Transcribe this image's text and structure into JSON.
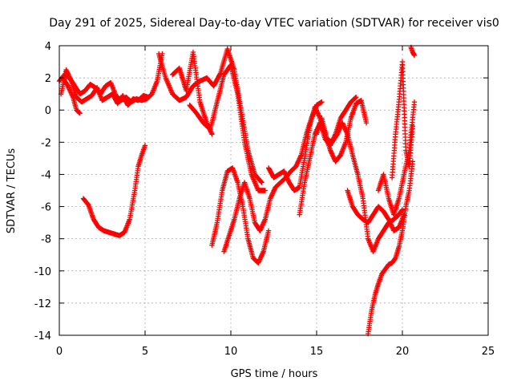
{
  "chart_data": {
    "type": "scatter",
    "title": "Day 291 of 2025, Sidereal Day-to-day VTEC variation (SDTVAR) for receiver vis0",
    "xlabel": "GPS time / hours",
    "ylabel": "SDTVAR / TECUs",
    "xlim": [
      0,
      25
    ],
    "ylim": [
      -14,
      4
    ],
    "xticks": [
      0,
      5,
      10,
      15,
      20,
      25
    ],
    "yticks": [
      -14,
      -12,
      -10,
      -8,
      -6,
      -4,
      -2,
      0,
      2,
      4
    ],
    "grid": true,
    "legend": "none",
    "marker": "plus",
    "color": "#ff0000",
    "series": [
      {
        "x": [
          0.0,
          0.3,
          0.6,
          0.9,
          1.2,
          1.5,
          1.8,
          2.1,
          2.4,
          2.7,
          3.0,
          3.3,
          3.6,
          3.9,
          4.2,
          4.5,
          4.8,
          5.1,
          5.4,
          5.7,
          6.0
        ],
        "y": [
          1.8,
          2.2,
          2.0,
          1.5,
          1.0,
          1.2,
          1.6,
          1.4,
          1.0,
          1.5,
          1.7,
          0.9,
          0.6,
          0.8,
          0.5,
          0.7,
          0.6,
          0.7,
          1.0,
          1.8,
          3.5
        ]
      },
      {
        "x": [
          0.1,
          0.4,
          0.7,
          1.0,
          1.3,
          1.6,
          1.9,
          2.2,
          2.5,
          2.8,
          3.1,
          3.4,
          3.7,
          4.0,
          4.3,
          4.6,
          4.9,
          5.2
        ],
        "y": [
          1.0,
          2.5,
          1.8,
          0.8,
          0.5,
          0.7,
          0.9,
          1.4,
          0.6,
          0.8,
          1.0,
          0.4,
          0.9,
          0.3,
          0.7,
          0.6,
          0.9,
          0.8
        ]
      },
      {
        "x": [
          0.2,
          0.5,
          0.8,
          1.0,
          1.2
        ],
        "y": [
          2.0,
          1.5,
          0.8,
          0.0,
          -0.2
        ]
      },
      {
        "x": [
          1.4,
          1.7,
          2.0,
          2.3,
          2.6,
          2.9,
          3.2,
          3.5,
          3.8,
          4.1,
          4.4,
          4.6,
          4.8,
          5.0
        ],
        "y": [
          -5.5,
          -5.9,
          -6.8,
          -7.3,
          -7.5,
          -7.6,
          -7.7,
          -7.8,
          -7.6,
          -6.8,
          -5.0,
          -3.5,
          -2.8,
          -2.2
        ]
      },
      {
        "x": [
          5.8,
          6.2,
          6.6,
          7.0,
          7.4,
          7.8,
          8.2,
          8.6,
          9.0,
          9.4,
          9.8,
          10.2,
          10.6,
          11.0,
          11.4,
          11.8
        ],
        "y": [
          3.5,
          2.0,
          1.0,
          0.6,
          0.8,
          1.5,
          1.8,
          2.0,
          1.5,
          2.3,
          3.8,
          2.5,
          0.0,
          -2.5,
          -4.0,
          -4.5
        ]
      },
      {
        "x": [
          6.6,
          7.0,
          7.4,
          7.8,
          8.2,
          8.6,
          8.9
        ],
        "y": [
          2.2,
          2.6,
          1.2,
          3.6,
          0.5,
          -0.8,
          -1.5
        ]
      },
      {
        "x": [
          7.6,
          8.0,
          8.4,
          8.8,
          9.2,
          9.6,
          10.0,
          10.4,
          10.8,
          11.2,
          11.6,
          12.0
        ],
        "y": [
          0.3,
          -0.2,
          -0.8,
          -1.2,
          0.5,
          2.2,
          2.8,
          1.0,
          -2.0,
          -4.0,
          -5.0,
          -5.0
        ]
      },
      {
        "x": [
          8.9,
          9.2,
          9.5,
          9.8,
          10.1,
          10.4,
          10.7,
          11.0,
          11.3,
          11.6,
          11.9,
          12.2
        ],
        "y": [
          -8.4,
          -7.0,
          -5.0,
          -3.8,
          -3.6,
          -4.5,
          -6.0,
          -8.0,
          -9.2,
          -9.5,
          -8.8,
          -7.5
        ]
      },
      {
        "x": [
          9.6,
          9.9,
          10.2,
          10.5,
          10.8,
          11.1,
          11.4,
          11.7,
          12.0,
          12.3,
          12.6,
          12.9,
          13.2,
          13.5,
          13.8,
          14.1,
          14.4,
          14.7,
          15.0,
          15.3
        ],
        "y": [
          -8.8,
          -7.8,
          -6.8,
          -5.5,
          -4.5,
          -5.5,
          -7.0,
          -7.5,
          -6.8,
          -5.5,
          -4.8,
          -4.5,
          -4.2,
          -3.8,
          -3.5,
          -2.8,
          -1.5,
          -0.5,
          0.3,
          0.5
        ]
      },
      {
        "x": [
          12.2,
          12.5,
          12.8,
          13.1,
          13.4,
          13.7,
          14.0,
          14.3,
          14.6,
          14.9,
          15.2,
          15.5,
          15.8,
          16.1,
          16.4,
          16.7,
          17.0,
          17.3,
          17.6,
          17.9
        ],
        "y": [
          -3.6,
          -4.2,
          -4.0,
          -3.8,
          -4.5,
          -5.0,
          -4.8,
          -3.0,
          -1.0,
          0.2,
          -0.5,
          -1.5,
          -2.5,
          -3.2,
          -2.8,
          -2.0,
          -0.5,
          0.4,
          0.6,
          -0.8
        ]
      },
      {
        "x": [
          14.0,
          14.3,
          14.6,
          14.9,
          15.2,
          15.5,
          15.8,
          16.1,
          16.4,
          16.7,
          17.0,
          17.3
        ],
        "y": [
          -6.5,
          -4.5,
          -3.0,
          -1.5,
          -0.8,
          -1.8,
          -2.2,
          -1.5,
          -0.5,
          0.0,
          0.5,
          0.8
        ]
      },
      {
        "x": [
          15.0,
          15.3,
          15.6,
          15.9,
          16.2,
          16.5,
          16.8,
          17.1,
          17.4,
          17.7,
          18.0,
          18.3,
          18.6,
          18.9,
          19.2,
          19.5,
          19.8,
          20.0
        ],
        "y": [
          -1.5,
          -0.5,
          -1.8,
          -2.0,
          -1.5,
          -0.8,
          -1.5,
          -2.8,
          -4.0,
          -5.5,
          -8.0,
          -8.8,
          -8.0,
          -7.5,
          -7.0,
          -6.8,
          -6.5,
          -6.2
        ]
      },
      {
        "x": [
          16.8,
          17.1,
          17.4,
          17.7,
          18.0,
          18.3,
          18.6,
          18.9,
          19.2,
          19.5,
          19.8,
          20.1
        ],
        "y": [
          -5.0,
          -6.0,
          -6.5,
          -6.8,
          -7.0,
          -6.5,
          -6.0,
          -6.3,
          -6.8,
          -7.5,
          -7.3,
          -6.5
        ]
      },
      {
        "x": [
          18.0,
          18.2,
          18.4,
          18.6,
          18.8,
          19.0,
          19.2,
          19.4,
          19.6,
          19.8,
          20.0,
          20.2,
          20.4,
          20.6
        ],
        "y": [
          -13.9,
          -12.5,
          -11.5,
          -10.8,
          -10.2,
          -9.9,
          -9.6,
          -9.5,
          -9.2,
          -8.5,
          -7.5,
          -6.0,
          -5.0,
          -3.2
        ]
      },
      {
        "x": [
          18.6,
          18.9,
          19.2,
          19.5,
          19.8,
          20.1,
          20.4,
          20.7
        ],
        "y": [
          -5.0,
          -4.0,
          -5.5,
          -6.5,
          -5.5,
          -4.0,
          -2.5,
          0.5
        ]
      },
      {
        "x": [
          19.4,
          19.6,
          19.8,
          20.0,
          20.2,
          20.4,
          20.6
        ],
        "y": [
          -4.2,
          -1.5,
          0.5,
          3.0,
          -2.5,
          -3.5,
          -1.0
        ]
      },
      {
        "x": [
          20.5,
          20.6,
          20.7
        ],
        "y": [
          3.9,
          3.6,
          3.4
        ]
      }
    ]
  }
}
